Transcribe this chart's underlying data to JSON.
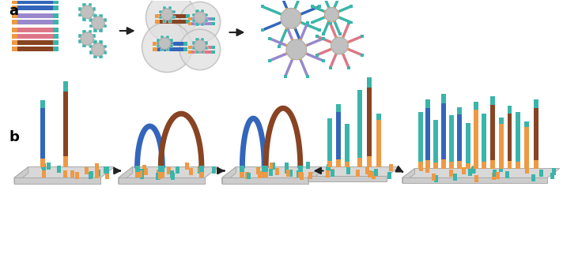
{
  "bg_color": "#ffffff",
  "label_a": "a",
  "label_b": "b",
  "colors": {
    "teal": "#3ab5aa",
    "blue": "#3366bb",
    "purple": "#9988cc",
    "pink": "#dd7788",
    "brown": "#884422",
    "orange": "#ee9944",
    "gray_bead": "#c0c0c0",
    "gray_bead_grad": "#aaaaaa",
    "bubble": "#e0e0e0",
    "bubble_edge": "#bbbbbb",
    "platform_gray": "#cccccc",
    "platform_top": "#d8d8d8",
    "platform_edge": "#aaaaaa",
    "arrow": "#222222"
  },
  "figsize": [
    7.12,
    3.22
  ],
  "dpi": 100
}
